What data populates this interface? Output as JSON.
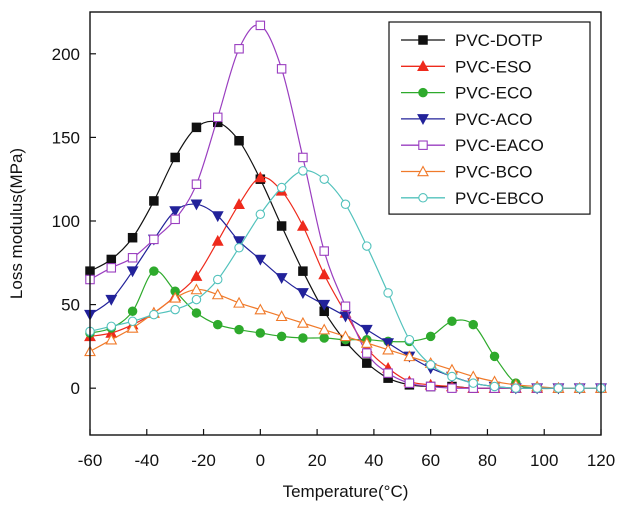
{
  "chart_data": {
    "type": "line",
    "xlabel": "Temperature(°C)",
    "ylabel": "Loss modulus(MPa)",
    "xlim": [
      -60,
      120
    ],
    "ylim": [
      -28,
      225
    ],
    "xticks": [
      -60,
      -40,
      -20,
      0,
      20,
      40,
      60,
      80,
      100,
      120
    ],
    "yticks": [
      0,
      50,
      100,
      150,
      200
    ],
    "grid": false,
    "legend_position": "top-right",
    "series": [
      {
        "name": "PVC-DOTP",
        "color": "#111111",
        "marker": "square-filled",
        "x": [
          -60,
          -52.5,
          -45,
          -37.5,
          -30,
          -22.5,
          -15,
          -7.5,
          0,
          7.5,
          15,
          22.5,
          30,
          37.5,
          45,
          52.5,
          60,
          67.5,
          75,
          82.5,
          90,
          97.5,
          105,
          112.5,
          120
        ],
        "values": [
          70,
          77,
          90,
          112,
          138,
          156,
          159,
          148,
          125,
          97,
          70,
          46,
          28,
          15,
          6,
          2,
          1,
          1,
          0,
          0,
          0,
          0,
          0,
          0,
          0
        ]
      },
      {
        "name": "PVC-ESO",
        "color": "#ee2a1c",
        "marker": "triangle-up-filled",
        "x": [
          -60,
          -52.5,
          -45,
          -37.5,
          -30,
          -22.5,
          -15,
          -7.5,
          0,
          7.5,
          15,
          22.5,
          30,
          37.5,
          45,
          52.5,
          60,
          67.5,
          75,
          82.5,
          90,
          97.5,
          105,
          112.5,
          120
        ],
        "values": [
          31,
          33,
          38,
          45,
          55,
          67,
          88,
          110,
          126,
          118,
          97,
          68,
          45,
          24,
          12,
          4,
          2,
          1,
          0,
          0,
          0,
          0,
          0,
          0,
          0
        ]
      },
      {
        "name": "PVC-ECO",
        "color": "#2eaa2c",
        "marker": "circle-filled",
        "x": [
          -60,
          -52.5,
          -45,
          -37.5,
          -30,
          -22.5,
          -15,
          -7.5,
          0,
          7.5,
          15,
          22.5,
          30,
          37.5,
          45,
          52.5,
          60,
          67.5,
          75,
          82.5,
          90,
          97.5,
          105,
          112.5,
          120
        ],
        "values": [
          33,
          36,
          46,
          70,
          58,
          45,
          38,
          35,
          33,
          31,
          30,
          30,
          29,
          29,
          28,
          28,
          31,
          40,
          38,
          19,
          3,
          0,
          0,
          0,
          0
        ]
      },
      {
        "name": "PVC-ACO",
        "color": "#22229a",
        "marker": "triangle-down-filled",
        "x": [
          -60,
          -52.5,
          -45,
          -37.5,
          -30,
          -22.5,
          -15,
          -7.5,
          0,
          7.5,
          15,
          22.5,
          30,
          37.5,
          45,
          52.5,
          60,
          67.5,
          75,
          82.5,
          90,
          97.5,
          105,
          112.5,
          120
        ],
        "values": [
          44,
          53,
          70,
          89,
          106,
          110,
          103,
          88,
          77,
          66,
          57,
          50,
          43,
          35,
          27,
          19,
          12,
          7,
          3,
          1,
          0,
          0,
          0,
          0,
          0
        ]
      },
      {
        "name": "PVC-EACO",
        "color": "#9a3ec0",
        "marker": "square-open",
        "x": [
          -60,
          -52.5,
          -45,
          -37.5,
          -30,
          -22.5,
          -15,
          -7.5,
          0,
          7.5,
          15,
          22.5,
          30,
          37.5,
          45,
          52.5,
          60,
          67.5,
          75,
          82.5,
          90,
          97.5,
          105,
          112.5,
          120
        ],
        "values": [
          65,
          72,
          78,
          89,
          101,
          122,
          162,
          203,
          217,
          191,
          138,
          82,
          49,
          21,
          9,
          3,
          1,
          0,
          0,
          0,
          0,
          0,
          0,
          0,
          0
        ]
      },
      {
        "name": "PVC-BCO",
        "color": "#f07a2a",
        "marker": "triangle-up-open",
        "x": [
          -60,
          -52.5,
          -45,
          -37.5,
          -30,
          -22.5,
          -15,
          -7.5,
          0,
          7.5,
          15,
          22.5,
          30,
          37.5,
          45,
          52.5,
          60,
          67.5,
          75,
          82.5,
          90,
          97.5,
          105,
          112.5,
          120
        ],
        "values": [
          22,
          29,
          36,
          45,
          54,
          59,
          56,
          51,
          47,
          43,
          39,
          35,
          31,
          27,
          23,
          19,
          15,
          11,
          7,
          4,
          2,
          1,
          0,
          0,
          0
        ]
      },
      {
        "name": "PVC-EBCO",
        "color": "#52c2bc",
        "marker": "circle-open",
        "x": [
          -60,
          -52.5,
          -45,
          -37.5,
          -30,
          -22.5,
          -15,
          -7.5,
          0,
          7.5,
          15,
          22.5,
          30,
          37.5,
          45,
          52.5,
          60,
          67.5,
          75,
          82.5,
          90,
          97.5,
          105,
          112.5,
          120
        ],
        "values": [
          34,
          37,
          40,
          44,
          47,
          53,
          65,
          84,
          104,
          120,
          130,
          125,
          110,
          85,
          57,
          29,
          14,
          7,
          3,
          1,
          0,
          0,
          0,
          0,
          0
        ]
      }
    ]
  }
}
